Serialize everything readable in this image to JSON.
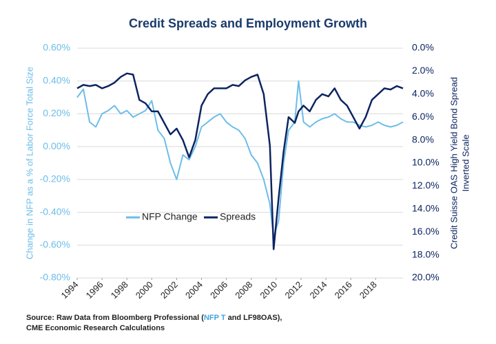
{
  "chart_data": {
    "type": "line",
    "title": "Credit Spreads and Employment Growth",
    "y_label": "Change in NFP as a % of Labor Force Total Size",
    "y2_label": [
      "Credit Suisse OAS High Yield Bond Spread",
      "Inverted Scale"
    ],
    "source": [
      "Source: Raw Data from Bloomberg Professional (",
      "NFP T",
      " and LF98OAS),",
      "CME Economic Research Calculations"
    ],
    "x": [
      1994,
      1994.5,
      1995,
      1995.5,
      1996,
      1996.5,
      1997,
      1997.5,
      1998,
      1998.5,
      1999,
      1999.5,
      2000,
      2000.5,
      2001,
      2001.5,
      2002,
      2002.5,
      2003,
      2003.5,
      2004,
      2004.5,
      2005,
      2005.5,
      2006,
      2006.5,
      2007,
      2007.5,
      2008,
      2008.5,
      2009,
      2009.5,
      2009.8,
      2010.2,
      2010.6,
      2011,
      2011.5,
      2011.8,
      2012.2,
      2012.7,
      2013.2,
      2013.7,
      2014.2,
      2014.7,
      2015.2,
      2015.7,
      2016.2,
      2016.7,
      2017.2,
      2017.7,
      2018.2,
      2018.7,
      2019.2,
      2019.7,
      2020.2
    ],
    "series": [
      {
        "name": "NFP Change",
        "color": "#6cbde8",
        "values": [
          0.3,
          0.35,
          0.15,
          0.12,
          0.2,
          0.22,
          0.25,
          0.2,
          0.22,
          0.18,
          0.2,
          0.22,
          0.28,
          0.1,
          0.05,
          -0.1,
          -0.2,
          -0.05,
          -0.08,
          0.0,
          0.12,
          0.15,
          0.18,
          0.2,
          0.15,
          0.12,
          0.1,
          0.05,
          -0.05,
          -0.1,
          -0.2,
          -0.35,
          -0.55,
          -0.45,
          -0.1,
          0.1,
          0.15,
          0.4,
          0.15,
          0.12,
          0.15,
          0.17,
          0.18,
          0.2,
          0.17,
          0.15,
          0.15,
          0.13,
          0.12,
          0.13,
          0.15,
          0.13,
          0.12,
          0.13,
          0.15
        ]
      },
      {
        "name": "Spreads",
        "color": "#0c2461",
        "axis": "y2",
        "values": [
          3.5,
          3.2,
          3.3,
          3.2,
          3.5,
          3.3,
          3.0,
          2.5,
          2.2,
          2.3,
          4.5,
          4.8,
          5.5,
          5.5,
          6.5,
          7.5,
          7,
          8,
          9.5,
          8,
          5,
          4,
          3.5,
          3.5,
          3.5,
          3.2,
          3.3,
          2.8,
          2.5,
          2.3,
          4,
          8.5,
          17.5,
          13,
          9,
          6,
          6.5,
          5.5,
          5,
          5.5,
          4.5,
          4,
          4.2,
          3.5,
          4.5,
          5,
          6,
          7,
          6,
          4.5,
          4,
          3.5,
          3.6,
          3.3,
          3.5
        ]
      }
    ],
    "xlim": [
      1994,
      2020.2
    ],
    "xticks": [
      1994,
      1996,
      1998,
      2000,
      2002,
      2004,
      2006,
      2008,
      2010,
      2012,
      2014,
      2016,
      2018
    ],
    "ylim": [
      -0.8,
      0.6
    ],
    "yticks": [
      {
        "value": -0.8,
        "label": "-0.80%"
      },
      {
        "value": -0.6,
        "label": "-0.60%"
      },
      {
        "value": -0.4,
        "label": "-0.40%"
      },
      {
        "value": -0.2,
        "label": "-0.20%"
      },
      {
        "value": 0,
        "label": "0.00%"
      },
      {
        "value": 0.2,
        "label": "0.20%"
      },
      {
        "value": 0.4,
        "label": "0.40%"
      },
      {
        "value": 0.6,
        "label": "0.60%"
      }
    ],
    "y2lim": [
      0,
      20
    ],
    "y2_inverted": true,
    "y2ticks": [
      {
        "value": 0,
        "label": "0.0%"
      },
      {
        "value": 2,
        "label": "2.0%"
      },
      {
        "value": 4,
        "label": "4.0%"
      },
      {
        "value": 6,
        "label": "6.0%"
      },
      {
        "value": 8,
        "label": "8.0%"
      },
      {
        "value": 10,
        "label": "10.0%"
      },
      {
        "value": 12,
        "label": "12.0%"
      },
      {
        "value": 14,
        "label": "14.0%"
      },
      {
        "value": 16,
        "label": "16.0%"
      },
      {
        "value": 18,
        "label": "18.0%"
      },
      {
        "value": 20,
        "label": "20.0%"
      }
    ],
    "grid": true
  }
}
